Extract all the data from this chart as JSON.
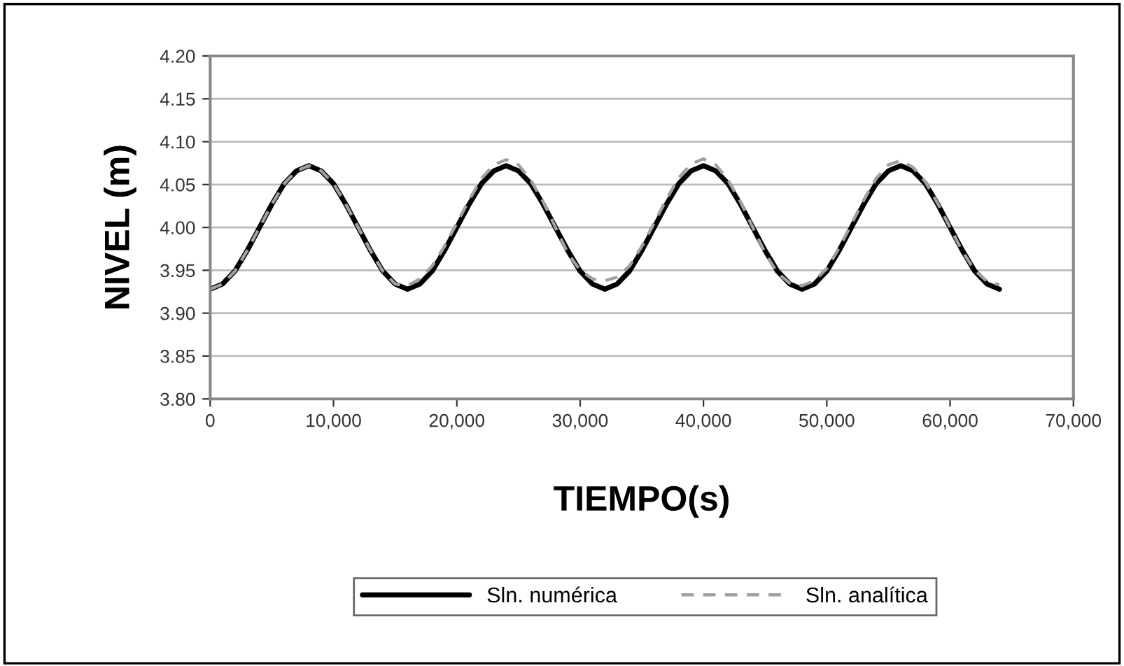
{
  "chart_data": {
    "type": "line",
    "xlabel": "TIEMPO(s)",
    "ylabel": "NIVEL (m)",
    "x": [
      0,
      1000,
      2000,
      3000,
      4000,
      5000,
      6000,
      7000,
      8000,
      9000,
      10000,
      11000,
      12000,
      13000,
      14000,
      15000,
      16000,
      17000,
      18000,
      19000,
      20000,
      21000,
      22000,
      23000,
      24000,
      25000,
      26000,
      27000,
      28000,
      29000,
      30000,
      31000,
      32000,
      33000,
      34000,
      35000,
      36000,
      37000,
      38000,
      39000,
      40000,
      41000,
      42000,
      43000,
      44000,
      45000,
      46000,
      47000,
      48000,
      49000,
      50000,
      51000,
      52000,
      53000,
      54000,
      55000,
      56000,
      57000,
      58000,
      59000,
      60000,
      61000,
      62000,
      63000,
      64000
    ],
    "series": [
      {
        "name": "Sln. numérica",
        "color": "#000000",
        "line_style": "solid",
        "values": [
          3.928,
          3.934,
          3.949,
          3.973,
          4.0,
          4.027,
          4.051,
          4.066,
          4.072,
          4.066,
          4.051,
          4.027,
          4.0,
          3.973,
          3.949,
          3.934,
          3.928,
          3.934,
          3.949,
          3.973,
          4.0,
          4.027,
          4.051,
          4.066,
          4.072,
          4.066,
          4.051,
          4.027,
          4.0,
          3.973,
          3.949,
          3.934,
          3.928,
          3.934,
          3.949,
          3.973,
          4.0,
          4.027,
          4.051,
          4.066,
          4.072,
          4.066,
          4.051,
          4.027,
          4.0,
          3.973,
          3.949,
          3.934,
          3.928,
          3.934,
          3.949,
          3.973,
          4.0,
          4.027,
          4.051,
          4.066,
          4.072,
          4.066,
          4.051,
          4.027,
          4.0,
          3.973,
          3.949,
          3.934,
          3.928
        ]
      },
      {
        "name": "Sln. analítica",
        "color": "#a0a0a0",
        "line_style": "dashed",
        "values": [
          3.928,
          3.934,
          3.949,
          3.973,
          4.0,
          4.027,
          4.051,
          4.066,
          4.072,
          4.066,
          4.051,
          4.027,
          4.0,
          3.973,
          3.949,
          3.934,
          3.932,
          3.94,
          3.955,
          3.978,
          4.005,
          4.032,
          4.057,
          4.073,
          4.079,
          4.073,
          4.055,
          4.03,
          4.0,
          3.97,
          3.95,
          3.94,
          3.938,
          3.942,
          3.955,
          3.978,
          4.005,
          4.033,
          4.058,
          4.074,
          4.08,
          4.073,
          4.055,
          4.03,
          4.0,
          3.97,
          3.947,
          3.935,
          3.932,
          3.938,
          3.952,
          3.976,
          4.004,
          4.032,
          4.057,
          4.073,
          4.078,
          4.07,
          4.053,
          4.028,
          4.0,
          3.972,
          3.95,
          3.937,
          3.933
        ]
      }
    ],
    "xlim": [
      0,
      70000
    ],
    "xticks": [
      {
        "value": 0,
        "label": "0"
      },
      {
        "value": 10000,
        "label": "10,000"
      },
      {
        "value": 20000,
        "label": "20,000"
      },
      {
        "value": 30000,
        "label": "30,000"
      },
      {
        "value": 40000,
        "label": "40,000"
      },
      {
        "value": 50000,
        "label": "50,000"
      },
      {
        "value": 60000,
        "label": "60,000"
      },
      {
        "value": 70000,
        "label": "70,000"
      }
    ],
    "ylim": [
      3.8,
      4.2
    ],
    "yticks": [
      {
        "value": 3.8,
        "label": "3.80"
      },
      {
        "value": 3.85,
        "label": "3.85"
      },
      {
        "value": 3.9,
        "label": "3.90"
      },
      {
        "value": 3.95,
        "label": "3.95"
      },
      {
        "value": 4.0,
        "label": "4.00"
      },
      {
        "value": 4.05,
        "label": "4.05"
      },
      {
        "value": 4.1,
        "label": "4.10"
      },
      {
        "value": 4.15,
        "label": "4.15"
      },
      {
        "value": 4.2,
        "label": "4.20"
      }
    ],
    "grid": "y",
    "legend": "bottom",
    "marker": "none"
  }
}
